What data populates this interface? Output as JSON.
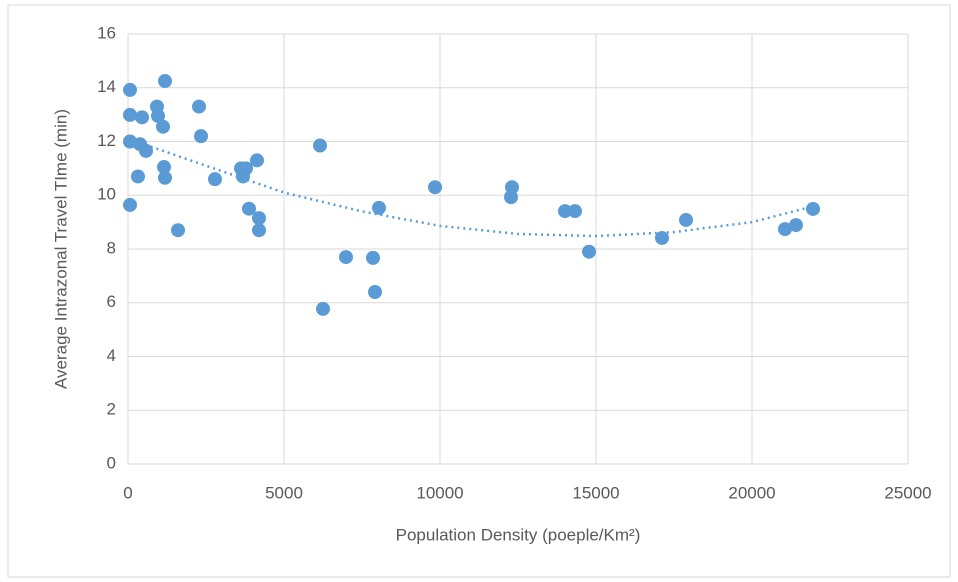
{
  "chart_data": {
    "type": "scatter",
    "x_label": "Population Density (poeple/Km²)",
    "y_label": "Average Intrazonal Travel TIme (min)",
    "xlim": [
      0,
      25000
    ],
    "xticks": [
      0,
      5000,
      10000,
      15000,
      20000,
      25000
    ],
    "ylim": [
      0,
      16
    ],
    "yticks": [
      0,
      2,
      4,
      6,
      8,
      10,
      12,
      14,
      16
    ],
    "grid": true,
    "series": [
      {
        "color": "#5b9bd5",
        "x": [
          64,
          64,
          64,
          64,
          449,
          385,
          320,
          577,
          929,
          962,
          1122,
          1186,
          1154,
          1186,
          1603,
          2276,
          2340,
          2788,
          3622,
          3686,
          3782,
          3878,
          4135,
          4199,
          4199,
          6154,
          6250,
          6987,
          7853,
          7917,
          8045,
          9840,
          12308,
          12276,
          14006,
          14327,
          14776,
          17115,
          17885,
          21058,
          21410,
          21955
        ],
        "values": [
          13.92,
          12.99,
          12.0,
          9.64,
          12.9,
          11.9,
          10.7,
          11.65,
          13.3,
          12.95,
          12.55,
          14.25,
          11.05,
          10.65,
          8.7,
          13.3,
          12.2,
          10.6,
          11.0,
          10.7,
          11.0,
          9.5,
          11.3,
          9.15,
          8.7,
          11.85,
          5.77,
          7.7,
          7.67,
          6.4,
          9.53,
          10.3,
          10.3,
          9.93,
          9.41,
          9.41,
          7.9,
          8.41,
          9.08,
          8.74,
          8.89,
          9.49
        ]
      }
    ],
    "trendline": {
      "color": "#5b9bd5",
      "x": [
        0,
        2500,
        5000,
        7500,
        10000,
        12500,
        15000,
        17500,
        20000,
        22000
      ],
      "values": [
        12.1,
        11.1,
        10.1,
        9.4,
        8.86,
        8.56,
        8.48,
        8.63,
        9.0,
        9.6
      ]
    }
  }
}
